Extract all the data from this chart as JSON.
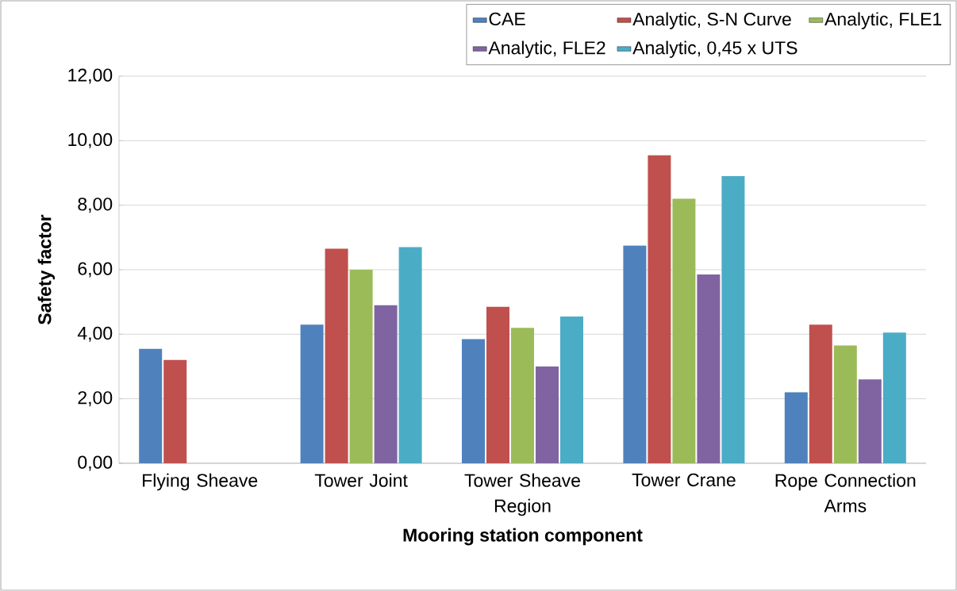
{
  "chart_data": {
    "type": "bar",
    "xlabel": "Mooring station component",
    "ylabel": "Safety factor",
    "categories": [
      "Flying Sheave",
      "Tower Joint",
      "Tower Sheave Region",
      "Tower Crane",
      "Rope Connection Arms"
    ],
    "series": [
      {
        "name": "CAE",
        "color": "#4f81bd",
        "values": [
          3.55,
          4.3,
          3.85,
          6.75,
          2.2
        ]
      },
      {
        "name": "Analytic, S-N Curve",
        "color": "#c0504d",
        "values": [
          3.2,
          6.65,
          4.85,
          9.55,
          4.3
        ]
      },
      {
        "name": "Analytic, FLE1",
        "color": "#9bbb59",
        "values": [
          null,
          6.0,
          4.2,
          8.2,
          3.65
        ]
      },
      {
        "name": "Analytic, FLE2",
        "color": "#8064a2",
        "values": [
          null,
          4.9,
          3.0,
          5.85,
          2.6
        ]
      },
      {
        "name": "Analytic, 0,45 x UTS",
        "color": "#4bacc6",
        "values": [
          null,
          6.7,
          4.55,
          8.9,
          4.05
        ]
      }
    ],
    "ylim": [
      0,
      12
    ],
    "yticks": [
      {
        "value": 0,
        "label": "0,00"
      },
      {
        "value": 2,
        "label": "2,00"
      },
      {
        "value": 4,
        "label": "4,00"
      },
      {
        "value": 6,
        "label": "6,00"
      },
      {
        "value": 8,
        "label": "8,00"
      },
      {
        "value": 10,
        "label": "10,00"
      },
      {
        "value": 12,
        "label": "12,00"
      }
    ],
    "grid": "y",
    "legend": "top right"
  }
}
